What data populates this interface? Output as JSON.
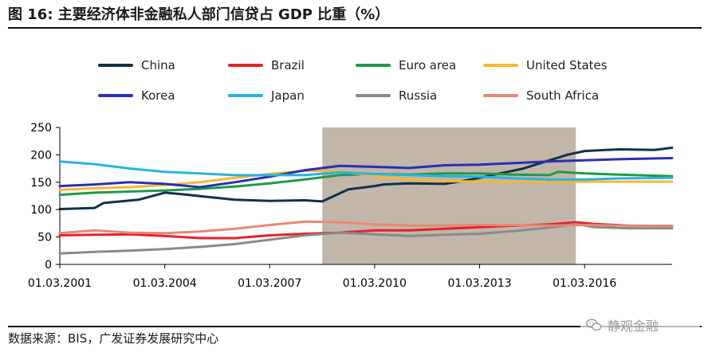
{
  "header": {
    "title": "图 16:  主要经济体非金融私人部门信贷占 GDP 比重（%）"
  },
  "footer": {
    "source": "数据来源：BIS，广发证券发展研究中心",
    "watermark_text": "静观金融",
    "watermark_icon": "wechat-icon"
  },
  "chart_data": {
    "type": "line",
    "title": "",
    "xlabel": "",
    "ylabel": "",
    "ylim": [
      0,
      250
    ],
    "yticks": [
      0,
      50,
      100,
      150,
      200,
      250
    ],
    "x_range": [
      "2001-03-01",
      "2018-09-01"
    ],
    "xtick_labels": [
      "01.03.2001",
      "01.03.2004",
      "01.03.2007",
      "01.03.2010",
      "01.03.2013",
      "01.03.2016"
    ],
    "grid": false,
    "legend_position": "top",
    "shaded_region": {
      "from": "2008-09-01",
      "to": "2015-12-01",
      "color": "#c2b6a8"
    },
    "series": [
      {
        "name": "China",
        "color": "#14304a",
        "points": [
          [
            "2001-03-01",
            101
          ],
          [
            "2002-03-01",
            103
          ],
          [
            "2002-06-01",
            112
          ],
          [
            "2003-06-01",
            118
          ],
          [
            "2004-03-01",
            131
          ],
          [
            "2004-09-01",
            128
          ],
          [
            "2005-06-01",
            123
          ],
          [
            "2006-03-01",
            118
          ],
          [
            "2007-03-01",
            116
          ],
          [
            "2008-03-01",
            117
          ],
          [
            "2008-09-01",
            115
          ],
          [
            "2009-06-01",
            137
          ],
          [
            "2010-03-01",
            143
          ],
          [
            "2010-06-01",
            146
          ],
          [
            "2011-03-01",
            148
          ],
          [
            "2012-03-01",
            147
          ],
          [
            "2012-09-01",
            152
          ],
          [
            "2013-03-01",
            158
          ],
          [
            "2013-09-01",
            165
          ],
          [
            "2014-06-01",
            175
          ],
          [
            "2015-03-01",
            190
          ],
          [
            "2015-09-01",
            200
          ],
          [
            "2016-03-01",
            207
          ],
          [
            "2017-03-01",
            210
          ],
          [
            "2018-03-01",
            209
          ],
          [
            "2018-09-01",
            213
          ]
        ]
      },
      {
        "name": "Brazil",
        "color": "#e8202a",
        "points": [
          [
            "2001-03-01",
            53
          ],
          [
            "2002-03-01",
            54
          ],
          [
            "2003-03-01",
            55
          ],
          [
            "2004-03-01",
            52
          ],
          [
            "2005-03-01",
            48
          ],
          [
            "2006-03-01",
            48
          ],
          [
            "2007-03-01",
            53
          ],
          [
            "2008-03-01",
            56
          ],
          [
            "2009-03-01",
            58
          ],
          [
            "2010-03-01",
            62
          ],
          [
            "2011-03-01",
            62
          ],
          [
            "2012-03-01",
            65
          ],
          [
            "2013-03-01",
            68
          ],
          [
            "2014-03-01",
            71
          ],
          [
            "2015-03-01",
            73
          ],
          [
            "2015-12-01",
            77
          ],
          [
            "2016-06-01",
            74
          ],
          [
            "2017-06-01",
            71
          ],
          [
            "2018-09-01",
            70
          ]
        ]
      },
      {
        "name": "Euro area",
        "color": "#1f9a4a",
        "points": [
          [
            "2001-03-01",
            127
          ],
          [
            "2002-03-01",
            131
          ],
          [
            "2003-03-01",
            133
          ],
          [
            "2004-03-01",
            135
          ],
          [
            "2005-03-01",
            138
          ],
          [
            "2006-03-01",
            142
          ],
          [
            "2007-03-01",
            148
          ],
          [
            "2008-03-01",
            155
          ],
          [
            "2009-03-01",
            163
          ],
          [
            "2010-03-01",
            165
          ],
          [
            "2011-03-01",
            164
          ],
          [
            "2012-03-01",
            166
          ],
          [
            "2013-03-01",
            166
          ],
          [
            "2014-03-01",
            164
          ],
          [
            "2015-03-01",
            163
          ],
          [
            "2015-06-01",
            169
          ],
          [
            "2016-03-01",
            166
          ],
          [
            "2017-03-01",
            164
          ],
          [
            "2018-09-01",
            161
          ]
        ]
      },
      {
        "name": "United States",
        "color": "#f7b731",
        "points": [
          [
            "2001-03-01",
            136
          ],
          [
            "2002-03-01",
            139
          ],
          [
            "2003-03-01",
            141
          ],
          [
            "2004-03-01",
            145
          ],
          [
            "2005-03-01",
            150
          ],
          [
            "2006-03-01",
            158
          ],
          [
            "2007-03-01",
            165
          ],
          [
            "2008-03-01",
            171
          ],
          [
            "2009-03-01",
            170
          ],
          [
            "2010-03-01",
            161
          ],
          [
            "2011-03-01",
            155
          ],
          [
            "2012-03-01",
            152
          ],
          [
            "2013-03-01",
            151
          ],
          [
            "2014-03-01",
            151
          ],
          [
            "2015-03-01",
            150
          ],
          [
            "2016-03-01",
            151
          ],
          [
            "2017-03-01",
            151
          ],
          [
            "2018-09-01",
            151
          ]
        ]
      },
      {
        "name": "Korea",
        "color": "#2a2fb5",
        "points": [
          [
            "2001-03-01",
            143
          ],
          [
            "2002-03-01",
            146
          ],
          [
            "2003-03-01",
            150
          ],
          [
            "2004-03-01",
            147
          ],
          [
            "2005-03-01",
            141
          ],
          [
            "2006-03-01",
            150
          ],
          [
            "2007-03-01",
            160
          ],
          [
            "2008-03-01",
            172
          ],
          [
            "2009-03-01",
            180
          ],
          [
            "2010-03-01",
            178
          ],
          [
            "2011-03-01",
            176
          ],
          [
            "2012-03-01",
            181
          ],
          [
            "2013-03-01",
            182
          ],
          [
            "2014-03-01",
            185
          ],
          [
            "2015-03-01",
            188
          ],
          [
            "2016-03-01",
            190
          ],
          [
            "2017-03-01",
            192
          ],
          [
            "2018-09-01",
            194
          ]
        ]
      },
      {
        "name": "Japan",
        "color": "#29b3e0",
        "points": [
          [
            "2001-03-01",
            188
          ],
          [
            "2002-03-01",
            183
          ],
          [
            "2003-03-01",
            175
          ],
          [
            "2004-03-01",
            169
          ],
          [
            "2005-03-01",
            166
          ],
          [
            "2006-03-01",
            163
          ],
          [
            "2007-03-01",
            163
          ],
          [
            "2008-03-01",
            163
          ],
          [
            "2009-03-01",
            168
          ],
          [
            "2010-03-01",
            165
          ],
          [
            "2011-03-01",
            163
          ],
          [
            "2012-03-01",
            161
          ],
          [
            "2013-03-01",
            160
          ],
          [
            "2014-03-01",
            157
          ],
          [
            "2015-03-01",
            155
          ],
          [
            "2016-03-01",
            155
          ],
          [
            "2017-03-01",
            157
          ],
          [
            "2018-09-01",
            158
          ]
        ]
      },
      {
        "name": "Russia",
        "color": "#8a8a8a",
        "points": [
          [
            "2001-03-01",
            20
          ],
          [
            "2002-03-01",
            23
          ],
          [
            "2003-03-01",
            25
          ],
          [
            "2004-03-01",
            28
          ],
          [
            "2005-03-01",
            32
          ],
          [
            "2006-03-01",
            37
          ],
          [
            "2007-03-01",
            45
          ],
          [
            "2008-03-01",
            53
          ],
          [
            "2009-03-01",
            58
          ],
          [
            "2010-03-01",
            55
          ],
          [
            "2011-03-01",
            52
          ],
          [
            "2012-03-01",
            54
          ],
          [
            "2013-03-01",
            56
          ],
          [
            "2014-03-01",
            61
          ],
          [
            "2015-03-01",
            67
          ],
          [
            "2015-12-01",
            74
          ],
          [
            "2016-06-01",
            68
          ],
          [
            "2017-06-01",
            66
          ],
          [
            "2018-09-01",
            66
          ]
        ]
      },
      {
        "name": "South Africa",
        "color": "#e48a75",
        "points": [
          [
            "2001-03-01",
            57
          ],
          [
            "2002-03-01",
            62
          ],
          [
            "2003-03-01",
            58
          ],
          [
            "2004-03-01",
            57
          ],
          [
            "2005-03-01",
            60
          ],
          [
            "2006-03-01",
            65
          ],
          [
            "2007-03-01",
            72
          ],
          [
            "2008-03-01",
            78
          ],
          [
            "2009-03-01",
            77
          ],
          [
            "2010-03-01",
            73
          ],
          [
            "2011-03-01",
            71
          ],
          [
            "2012-03-01",
            71
          ],
          [
            "2013-03-01",
            72
          ],
          [
            "2014-03-01",
            72
          ],
          [
            "2015-03-01",
            71
          ],
          [
            "2016-03-01",
            72
          ],
          [
            "2017-03-01",
            71
          ],
          [
            "2018-09-01",
            70
          ]
        ]
      }
    ]
  }
}
